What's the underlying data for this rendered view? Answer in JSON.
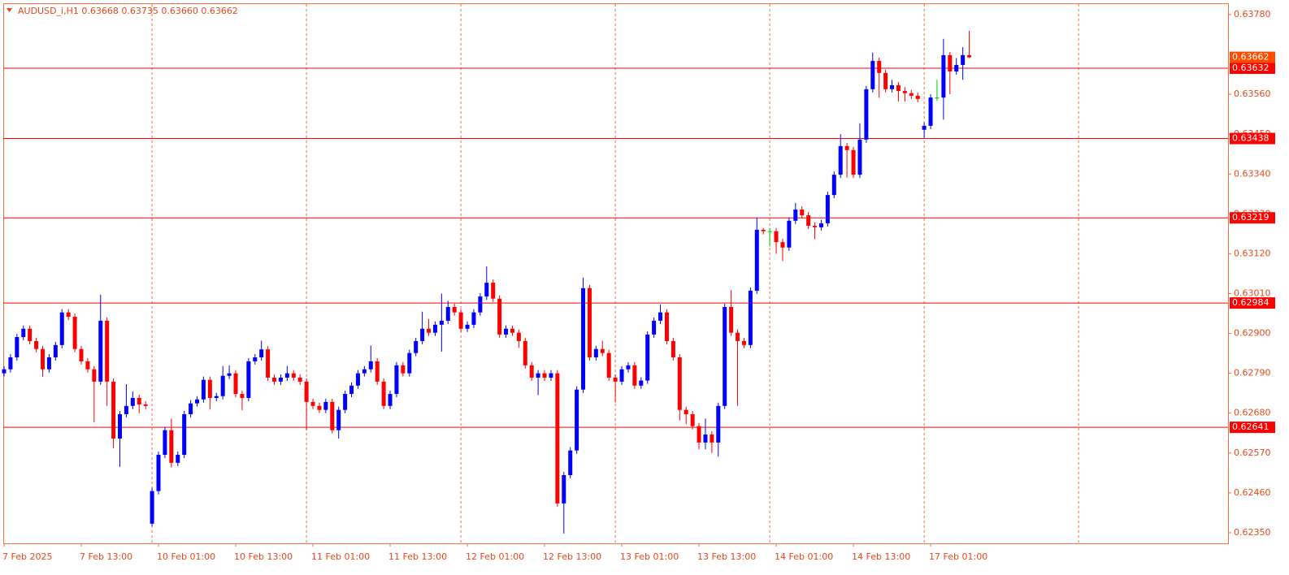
{
  "chart_data": {
    "type": "candlestick",
    "title": "AUDUSD_i,H1  0.63668 0.63735 0.63660 0.63662",
    "categories": [
      "7 Feb 2025",
      null,
      null,
      null,
      null,
      null,
      null,
      null,
      null,
      null,
      null,
      null,
      "7 Feb 13:00",
      null,
      null,
      null,
      null,
      null,
      null,
      null,
      null,
      null,
      null,
      null,
      "10 Feb 01:00",
      null,
      null,
      null,
      null,
      null,
      null,
      null,
      null,
      null,
      null,
      null,
      "10 Feb 13:00",
      null,
      null,
      null,
      null,
      null,
      null,
      null,
      null,
      null,
      null,
      null,
      "11 Feb 01:00",
      null,
      null,
      null,
      null,
      null,
      null,
      null,
      null,
      null,
      null,
      null,
      "11 Feb 13:00",
      null,
      null,
      null,
      null,
      null,
      null,
      null,
      null,
      null,
      null,
      null,
      "12 Feb 01:00",
      null,
      null,
      null,
      null,
      null,
      null,
      null,
      null,
      null,
      null,
      null,
      "12 Feb 13:00",
      null,
      null,
      null,
      null,
      null,
      null,
      null,
      null,
      null,
      null,
      null,
      "13 Feb 01:00",
      null,
      null,
      null,
      null,
      null,
      null,
      null,
      null,
      null,
      null,
      null,
      "13 Feb 13:00",
      null,
      null,
      null,
      null,
      null,
      null,
      null,
      null,
      null,
      null,
      null,
      "14 Feb 01:00",
      null,
      null,
      null,
      null,
      null,
      null,
      null,
      null,
      null,
      null,
      null,
      "14 Feb 13:00",
      null,
      null,
      null,
      null,
      null,
      null,
      null,
      null,
      null,
      null,
      null,
      "17 Feb 01:00",
      null,
      null,
      null,
      null,
      null,
      null
    ],
    "open": [
      0.6279,
      0.62801,
      0.62834,
      0.6289,
      0.62913,
      0.62879,
      0.62857,
      0.62801,
      0.62834,
      0.62868,
      0.62958,
      0.62946,
      0.62857,
      0.62823,
      0.62801,
      0.62767,
      0.62935,
      0.62767,
      0.6261,
      0.62677,
      0.627,
      0.62722,
      0.62704,
      0.62375,
      0.62465,
      0.62565,
      0.62633,
      0.62543,
      0.62565,
      0.62677,
      0.62707,
      0.62718,
      0.62772,
      0.62722,
      0.62727,
      0.62783,
      0.6279,
      0.62733,
      0.62722,
      0.62823,
      0.62834,
      0.62856,
      0.62778,
      0.62767,
      0.62778,
      0.6279,
      0.62778,
      0.62767,
      0.62711,
      0.627,
      0.62689,
      0.62711,
      0.62633,
      0.62689,
      0.62733,
      0.62756,
      0.6279,
      0.62801,
      0.62823,
      0.62767,
      0.627,
      0.62733,
      0.62812,
      0.6279,
      0.62846,
      0.62879,
      0.62913,
      0.62902,
      0.62924,
      0.62935,
      0.62973,
      0.62958,
      0.62913,
      0.62924,
      0.62958,
      0.63002,
      0.6304,
      0.62996,
      0.62897,
      0.62913,
      0.62902,
      0.62879,
      0.62812,
      0.62778,
      0.6279,
      0.62778,
      0.6279,
      0.62431,
      0.62509,
      0.62577,
      0.62745,
      0.63025,
      0.62834,
      0.62857,
      0.62846,
      0.62778,
      0.62767,
      0.62801,
      0.62812,
      0.62756,
      0.6277,
      0.62897,
      0.62935,
      0.62958,
      0.62879,
      0.62834,
      0.62689,
      0.62677,
      0.62644,
      0.62599,
      0.62621,
      0.62599,
      0.627,
      0.62973,
      0.62902,
      0.62879,
      0.62868,
      0.63018,
      0.63186,
      0.63182,
      0.63182,
      0.63152,
      0.63137,
      0.63211,
      0.63242,
      0.63226,
      0.63197,
      0.63193,
      0.63204,
      0.63282,
      0.63338,
      0.63417,
      0.63406,
      0.63338,
      0.63435,
      0.63574,
      0.63652,
      0.63619,
      0.63574,
      0.63585,
      0.63569,
      0.63563,
      0.63556,
      0.63462,
      0.63473,
      0.63551,
      0.63551,
      0.63668,
      0.63623,
      0.63641,
      0.63668
    ],
    "high": [
      0.6281,
      0.62843,
      0.62899,
      0.62922,
      0.62922,
      0.62888,
      0.62866,
      0.62843,
      0.62877,
      0.62967,
      0.62967,
      0.62955,
      0.62866,
      0.62832,
      0.6281,
      0.63007,
      0.62944,
      0.62776,
      0.62686,
      0.6276,
      0.6274,
      0.62731,
      0.62713,
      0.62474,
      0.62574,
      0.62642,
      0.62665,
      0.62574,
      0.62686,
      0.62716,
      0.62727,
      0.62781,
      0.62781,
      0.62736,
      0.6281,
      0.62812,
      0.62799,
      0.62742,
      0.62832,
      0.62843,
      0.6288,
      0.62865,
      0.62787,
      0.62787,
      0.6281,
      0.62799,
      0.62787,
      0.62776,
      0.6272,
      0.62709,
      0.6272,
      0.6272,
      0.62698,
      0.62742,
      0.62765,
      0.62799,
      0.6281,
      0.62867,
      0.62832,
      0.62776,
      0.62742,
      0.62821,
      0.62821,
      0.62855,
      0.62888,
      0.6296,
      0.6294,
      0.62933,
      0.6301,
      0.6299,
      0.62982,
      0.62967,
      0.62933,
      0.62967,
      0.63011,
      0.63085,
      0.63049,
      0.63005,
      0.62922,
      0.62922,
      0.62911,
      0.62888,
      0.62821,
      0.62799,
      0.62799,
      0.62799,
      0.62799,
      0.62518,
      0.62586,
      0.62754,
      0.63054,
      0.63034,
      0.62866,
      0.6288,
      0.62855,
      0.62787,
      0.6281,
      0.62821,
      0.62821,
      0.62779,
      0.62906,
      0.62944,
      0.6298,
      0.62967,
      0.62888,
      0.62843,
      0.62698,
      0.62686,
      0.62653,
      0.62665,
      0.6263,
      0.62709,
      0.62982,
      0.6302,
      0.62911,
      0.62888,
      0.63027,
      0.6322,
      0.63191,
      0.63191,
      0.63191,
      0.63161,
      0.6322,
      0.6326,
      0.63251,
      0.63235,
      0.63206,
      0.63213,
      0.63291,
      0.63347,
      0.6345,
      0.63426,
      0.63415,
      0.6348,
      0.63583,
      0.63675,
      0.63661,
      0.63628,
      0.636,
      0.63594,
      0.6358,
      0.63572,
      0.63565,
      0.63482,
      0.6356,
      0.636,
      0.63713,
      0.63677,
      0.6366,
      0.6369,
      0.63735
    ],
    "low": [
      0.62781,
      0.62792,
      0.62825,
      0.62881,
      0.6287,
      0.62848,
      0.6278,
      0.62792,
      0.62825,
      0.62859,
      0.62937,
      0.62848,
      0.62814,
      0.62792,
      0.62655,
      0.62758,
      0.627,
      0.62583,
      0.62532,
      0.62668,
      0.62691,
      0.6268,
      0.62691,
      0.62368,
      0.62456,
      0.62556,
      0.6253,
      0.62534,
      0.62556,
      0.62668,
      0.62698,
      0.62709,
      0.6269,
      0.62713,
      0.62718,
      0.62774,
      0.62724,
      0.62688,
      0.62713,
      0.62814,
      0.62825,
      0.62769,
      0.62758,
      0.62758,
      0.62769,
      0.62769,
      0.62758,
      0.62633,
      0.62691,
      0.6268,
      0.6268,
      0.62624,
      0.6261,
      0.6268,
      0.62724,
      0.62747,
      0.62781,
      0.62792,
      0.62758,
      0.62691,
      0.62691,
      0.62724,
      0.62781,
      0.62781,
      0.62837,
      0.6287,
      0.62893,
      0.62893,
      0.6285,
      0.62926,
      0.62949,
      0.62904,
      0.62904,
      0.62915,
      0.62949,
      0.62993,
      0.62987,
      0.62888,
      0.62888,
      0.62893,
      0.6286,
      0.62803,
      0.62769,
      0.6273,
      0.62769,
      0.62769,
      0.62422,
      0.62348,
      0.625,
      0.62568,
      0.62736,
      0.62825,
      0.62825,
      0.62837,
      0.62769,
      0.6271,
      0.62758,
      0.62792,
      0.62747,
      0.62747,
      0.62761,
      0.62888,
      0.62926,
      0.6287,
      0.62825,
      0.6266,
      0.6265,
      0.62635,
      0.6258,
      0.6258,
      0.6257,
      0.6256,
      0.62691,
      0.62893,
      0.627,
      0.62859,
      0.62859,
      0.63009,
      0.63173,
      0.6314,
      0.6312,
      0.631,
      0.63128,
      0.63202,
      0.63217,
      0.63188,
      0.6316,
      0.63184,
      0.63195,
      0.63273,
      0.63329,
      0.6333,
      0.63329,
      0.63329,
      0.63426,
      0.63565,
      0.6355,
      0.63565,
      0.63565,
      0.6354,
      0.6354,
      0.63547,
      0.63538,
      0.6344,
      0.63464,
      0.63542,
      0.6349,
      0.6356,
      0.63614,
      0.636,
      0.6366
    ],
    "close": [
      0.62801,
      0.62834,
      0.6289,
      0.62913,
      0.62879,
      0.62857,
      0.62801,
      0.62834,
      0.62868,
      0.62958,
      0.62946,
      0.62857,
      0.62823,
      0.62801,
      0.62767,
      0.62935,
      0.62767,
      0.6261,
      0.62677,
      0.627,
      0.62722,
      0.62704,
      0.627,
      0.62465,
      0.62565,
      0.62633,
      0.62543,
      0.62565,
      0.62677,
      0.62707,
      0.62718,
      0.62772,
      0.62722,
      0.62727,
      0.62783,
      0.6279,
      0.62733,
      0.62722,
      0.62823,
      0.62834,
      0.62856,
      0.62778,
      0.62767,
      0.62778,
      0.6279,
      0.62778,
      0.62767,
      0.62711,
      0.627,
      0.62689,
      0.62711,
      0.62633,
      0.62689,
      0.62733,
      0.62756,
      0.6279,
      0.62801,
      0.62823,
      0.62767,
      0.627,
      0.62733,
      0.62812,
      0.6279,
      0.62846,
      0.62879,
      0.62913,
      0.62902,
      0.62924,
      0.62935,
      0.62973,
      0.62958,
      0.62913,
      0.62924,
      0.62958,
      0.63002,
      0.6304,
      0.62996,
      0.62897,
      0.62913,
      0.62902,
      0.62879,
      0.62812,
      0.62778,
      0.6279,
      0.62778,
      0.6279,
      0.62431,
      0.62509,
      0.62577,
      0.62745,
      0.63025,
      0.62834,
      0.62857,
      0.62846,
      0.62778,
      0.62767,
      0.62801,
      0.62812,
      0.62756,
      0.6277,
      0.62897,
      0.62935,
      0.62958,
      0.62879,
      0.62834,
      0.62689,
      0.62677,
      0.62644,
      0.62599,
      0.62621,
      0.62599,
      0.627,
      0.62973,
      0.62902,
      0.62879,
      0.62868,
      0.63018,
      0.63186,
      0.63182,
      0.63182,
      0.63152,
      0.63137,
      0.63211,
      0.63242,
      0.63226,
      0.63197,
      0.63193,
      0.63204,
      0.63282,
      0.63338,
      0.63417,
      0.63406,
      0.63338,
      0.63435,
      0.63574,
      0.63652,
      0.63619,
      0.63574,
      0.63585,
      0.63569,
      0.63563,
      0.63556,
      0.63547,
      0.63473,
      0.63551,
      0.63551,
      0.63668,
      0.63623,
      0.63641,
      0.63668,
      0.63662
    ],
    "up_color": "#0000ff",
    "down_color": "#ff0000",
    "doji_color": "#00c800",
    "ylim": [
      0.62323,
      0.63809
    ],
    "yticks": [
      {
        "value": 0.6378,
        "label": "0.63780"
      },
      {
        "value": 0.6356,
        "label": "0.63560"
      },
      {
        "value": 0.6345,
        "label": "0.63450"
      },
      {
        "value": 0.6334,
        "label": "0.63340"
      },
      {
        "value": 0.6323,
        "label": "0.63230"
      },
      {
        "value": 0.6312,
        "label": "0.63120"
      },
      {
        "value": 0.6301,
        "label": "0.63010"
      },
      {
        "value": 0.629,
        "label": "0.62900"
      },
      {
        "value": 0.6279,
        "label": "0.62790"
      },
      {
        "value": 0.6268,
        "label": "0.62680"
      },
      {
        "value": 0.6257,
        "label": "0.62570"
      },
      {
        "value": 0.6246,
        "label": "0.62460"
      },
      {
        "value": 0.6235,
        "label": "0.62350"
      }
    ],
    "levels": [
      0.63632,
      0.63438,
      0.63219,
      0.62984,
      0.62641
    ],
    "level_color": "#ff0000",
    "price_color": "#ff4a00",
    "grid": true
  }
}
